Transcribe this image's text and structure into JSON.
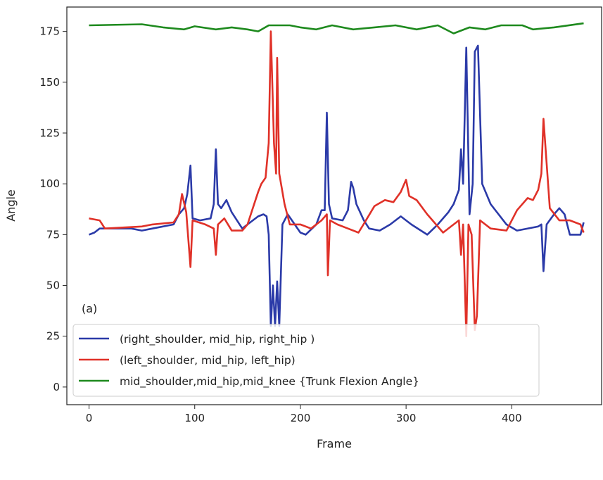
{
  "chart_data": {
    "type": "line",
    "title": "",
    "xlabel": "Frame",
    "ylabel": "Angle",
    "annotation": "(a)",
    "xlim": [
      -21,
      485
    ],
    "ylim": [
      -8.7,
      187
    ],
    "xticks": [
      0,
      100,
      200,
      300,
      400
    ],
    "yticks": [
      0,
      25,
      50,
      75,
      100,
      125,
      150,
      175
    ],
    "grid": false,
    "legend_placement": "lower-left",
    "series": [
      {
        "name": "(right_shoulder, mid_hip, right_hip )",
        "color": "#2b3aa8",
        "points": [
          [
            0,
            75
          ],
          [
            5,
            76
          ],
          [
            10,
            78
          ],
          [
            40,
            78
          ],
          [
            50,
            77
          ],
          [
            60,
            78
          ],
          [
            80,
            80
          ],
          [
            85,
            85
          ],
          [
            90,
            88
          ],
          [
            93,
            95
          ],
          [
            96,
            109
          ],
          [
            98,
            83
          ],
          [
            105,
            82
          ],
          [
            115,
            83
          ],
          [
            118,
            90
          ],
          [
            120,
            117
          ],
          [
            122,
            90
          ],
          [
            125,
            88
          ],
          [
            130,
            92
          ],
          [
            135,
            86
          ],
          [
            145,
            78
          ],
          [
            150,
            80
          ],
          [
            160,
            84
          ],
          [
            165,
            85
          ],
          [
            168,
            84
          ],
          [
            170,
            75
          ],
          [
            172,
            30
          ],
          [
            174,
            50
          ],
          [
            176,
            30
          ],
          [
            178,
            52
          ],
          [
            180,
            30
          ],
          [
            183,
            80
          ],
          [
            188,
            85
          ],
          [
            192,
            82
          ],
          [
            200,
            76
          ],
          [
            205,
            75
          ],
          [
            215,
            80
          ],
          [
            220,
            87
          ],
          [
            223,
            87
          ],
          [
            225,
            135
          ],
          [
            227,
            90
          ],
          [
            230,
            83
          ],
          [
            240,
            82
          ],
          [
            245,
            87
          ],
          [
            248,
            101
          ],
          [
            250,
            98
          ],
          [
            253,
            90
          ],
          [
            260,
            82
          ],
          [
            265,
            78
          ],
          [
            275,
            77
          ],
          [
            285,
            80
          ],
          [
            295,
            84
          ],
          [
            305,
            80
          ],
          [
            320,
            75
          ],
          [
            330,
            80
          ],
          [
            340,
            86
          ],
          [
            345,
            90
          ],
          [
            350,
            97
          ],
          [
            352,
            117
          ],
          [
            354,
            100
          ],
          [
            357,
            167
          ],
          [
            360,
            85
          ],
          [
            363,
            100
          ],
          [
            365,
            165
          ],
          [
            368,
            168
          ],
          [
            372,
            100
          ],
          [
            380,
            90
          ],
          [
            395,
            80
          ],
          [
            405,
            77
          ],
          [
            425,
            79
          ],
          [
            428,
            80
          ],
          [
            430,
            57
          ],
          [
            433,
            80
          ],
          [
            440,
            85
          ],
          [
            445,
            88
          ],
          [
            450,
            85
          ],
          [
            455,
            75
          ],
          [
            465,
            75
          ],
          [
            468,
            81
          ]
        ]
      },
      {
        "name": "(left_shoulder, mid_hip, left_hip)",
        "color": "#e03128",
        "points": [
          [
            0,
            83
          ],
          [
            10,
            82
          ],
          [
            15,
            78
          ],
          [
            50,
            79
          ],
          [
            60,
            80
          ],
          [
            80,
            81
          ],
          [
            85,
            85
          ],
          [
            88,
            95
          ],
          [
            92,
            86
          ],
          [
            96,
            59
          ],
          [
            98,
            82
          ],
          [
            110,
            80
          ],
          [
            118,
            78
          ],
          [
            120,
            65
          ],
          [
            122,
            80
          ],
          [
            128,
            83
          ],
          [
            135,
            77
          ],
          [
            145,
            77
          ],
          [
            150,
            80
          ],
          [
            155,
            88
          ],
          [
            160,
            96
          ],
          [
            163,
            100
          ],
          [
            167,
            103
          ],
          [
            170,
            120
          ],
          [
            172,
            175
          ],
          [
            175,
            120
          ],
          [
            177,
            105
          ],
          [
            178,
            162
          ],
          [
            180,
            105
          ],
          [
            185,
            90
          ],
          [
            190,
            80
          ],
          [
            200,
            80
          ],
          [
            210,
            78
          ],
          [
            220,
            82
          ],
          [
            225,
            85
          ],
          [
            226,
            55
          ],
          [
            228,
            82
          ],
          [
            235,
            80
          ],
          [
            245,
            78
          ],
          [
            255,
            76
          ],
          [
            262,
            82
          ],
          [
            270,
            89
          ],
          [
            280,
            92
          ],
          [
            288,
            91
          ],
          [
            295,
            96
          ],
          [
            300,
            102
          ],
          [
            303,
            94
          ],
          [
            310,
            92
          ],
          [
            320,
            85
          ],
          [
            325,
            82
          ],
          [
            335,
            76
          ],
          [
            345,
            80
          ],
          [
            350,
            82
          ],
          [
            352,
            65
          ],
          [
            354,
            80
          ],
          [
            357,
            25
          ],
          [
            359,
            80
          ],
          [
            362,
            75
          ],
          [
            365,
            28
          ],
          [
            367,
            35
          ],
          [
            370,
            82
          ],
          [
            380,
            78
          ],
          [
            395,
            77
          ],
          [
            405,
            87
          ],
          [
            415,
            93
          ],
          [
            420,
            92
          ],
          [
            425,
            97
          ],
          [
            428,
            105
          ],
          [
            430,
            132
          ],
          [
            433,
            110
          ],
          [
            436,
            88
          ],
          [
            445,
            82
          ],
          [
            455,
            82
          ],
          [
            465,
            80
          ],
          [
            468,
            76
          ]
        ]
      },
      {
        "name": "mid_shoulder,mid_hip,mid_knee {Trunk Flexion Angle}",
        "color": "#1e8a1e",
        "points": [
          [
            0,
            178
          ],
          [
            50,
            178.5
          ],
          [
            70,
            177
          ],
          [
            90,
            176
          ],
          [
            100,
            177.5
          ],
          [
            120,
            176
          ],
          [
            135,
            177
          ],
          [
            150,
            176
          ],
          [
            160,
            175
          ],
          [
            170,
            178
          ],
          [
            190,
            178
          ],
          [
            200,
            177
          ],
          [
            215,
            176
          ],
          [
            230,
            178
          ],
          [
            250,
            176
          ],
          [
            270,
            177
          ],
          [
            290,
            178
          ],
          [
            310,
            176
          ],
          [
            330,
            178
          ],
          [
            345,
            174
          ],
          [
            360,
            177
          ],
          [
            375,
            176
          ],
          [
            390,
            178
          ],
          [
            410,
            178
          ],
          [
            420,
            176
          ],
          [
            440,
            177
          ],
          [
            468,
            179
          ]
        ]
      }
    ]
  }
}
